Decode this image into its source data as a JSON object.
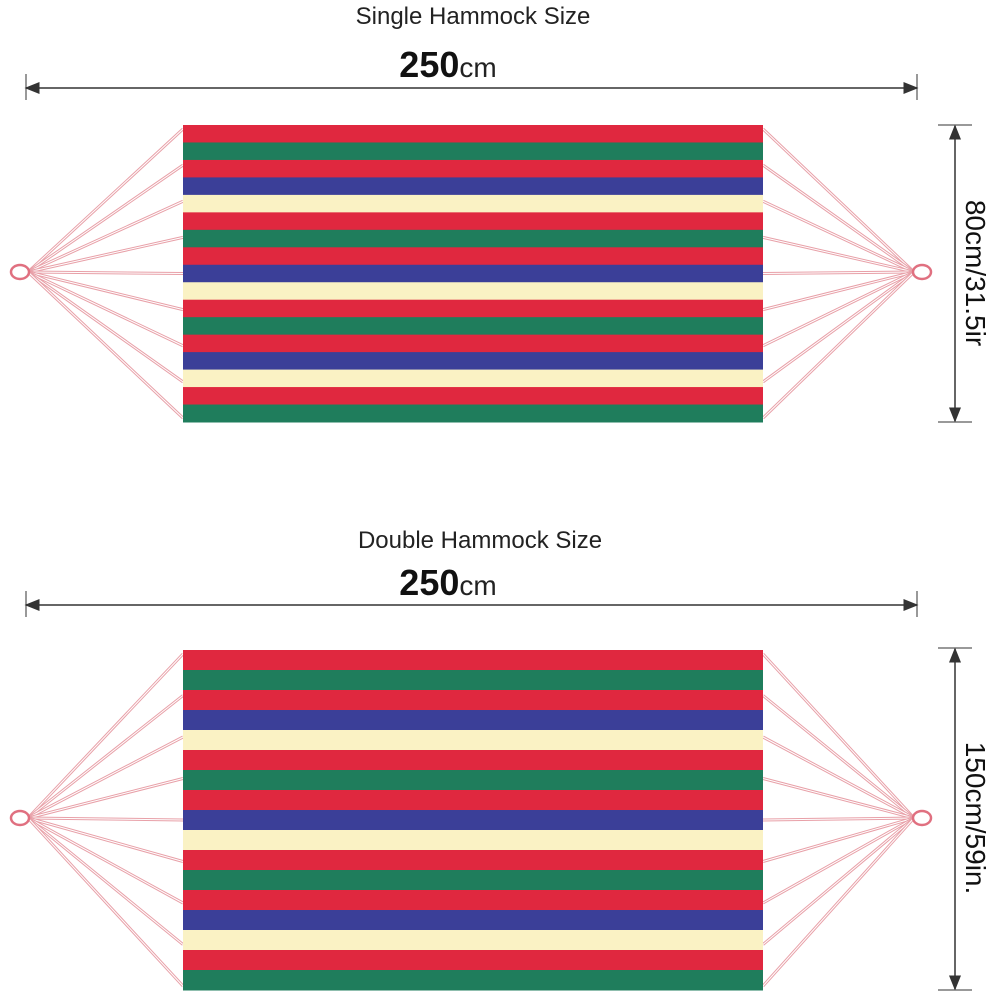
{
  "single": {
    "title": "Single Hammock Size",
    "length_number": "250",
    "length_unit": "cm",
    "width": "80cm/31.5ir"
  },
  "double": {
    "title": "Double Hammock Size",
    "length_number": "250",
    "length_unit": "cm",
    "width": "150cm/59in."
  }
}
